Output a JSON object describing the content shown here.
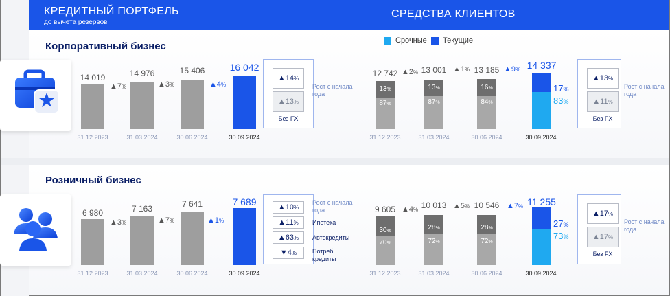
{
  "header": {
    "left_title": "КРЕДИТНЫЙ ПОРТФЕЛЬ",
    "left_subtitle": "до вычета резервов",
    "right_title": "СРЕДСТВА КЛИЕНТОВ"
  },
  "legend": [
    {
      "label": "Срочные",
      "color": "#1fa9f0"
    },
    {
      "label": "Текущие",
      "color": "#1a55e8"
    }
  ],
  "colors": {
    "bar_grey": "#9e9e9e",
    "bar_dark": "#6e6e6e",
    "bar_light": "#a8a8a8",
    "accent": "#1a55e8",
    "term": "#1fa9f0"
  },
  "sections": [
    {
      "title": "Корпоративный бизнес",
      "icon": "briefcase-icon",
      "loans": {
        "categories": [
          "31.12.2023",
          "31.03.2024",
          "30.06.2024",
          "30.09.2024"
        ],
        "values": [
          14019,
          14976,
          15406,
          16042
        ],
        "labels": [
          "14 019",
          "14 976",
          "15 406",
          "16 042"
        ],
        "growth": [
          "▲7",
          "▲3",
          "▲4"
        ],
        "growth_unit": "%",
        "box": {
          "items": [
            {
              "label": "▲14",
              "unit": "%",
              "caption": "Рост с начала года"
            },
            {
              "label": "▲13",
              "unit": "%",
              "caption": "Без FX"
            }
          ]
        }
      },
      "funds": {
        "categories": [
          "31.12.2023",
          "31.03.2024",
          "30.06.2024",
          "30.09.2024"
        ],
        "values": [
          12742,
          13001,
          13185,
          14337
        ],
        "labels": [
          "12 742",
          "13 001",
          "13 185",
          "14 337"
        ],
        "growth": [
          "▲2",
          "▲1",
          "▲9"
        ],
        "growth_unit": "%",
        "current_share": [
          13,
          13,
          16,
          17
        ],
        "term_share": [
          87,
          87,
          84,
          83
        ],
        "box": {
          "items": [
            {
              "label": "▲13",
              "unit": "%",
              "caption": "Рост с начала года"
            },
            {
              "label": "▲11",
              "unit": "%",
              "caption": "Без FX"
            }
          ]
        }
      }
    },
    {
      "title": "Розничный бизнес",
      "icon": "people-icon",
      "loans": {
        "categories": [
          "31.12.2023",
          "31.03.2024",
          "30.06.2024",
          "30.09.2024"
        ],
        "values": [
          6980,
          7163,
          7641,
          7689
        ],
        "labels": [
          "6 980",
          "7 163",
          "7 641",
          "7 689"
        ],
        "growth": [
          "▲3",
          "▲7",
          "▲1"
        ],
        "growth_unit": "%",
        "box": {
          "items": [
            {
              "label": "▲10",
              "unit": "%",
              "caption": "Рост с начала года"
            },
            {
              "label": "▲11",
              "unit": "%",
              "caption": "Ипотека"
            },
            {
              "label": "▲63",
              "unit": "%",
              "caption": "Автокредиты"
            },
            {
              "label": "▼4",
              "unit": "%",
              "caption": "Потреб. кредиты"
            }
          ]
        }
      },
      "funds": {
        "categories": [
          "31.12.2023",
          "31.03.2024",
          "30.06.2024",
          "30.09.2024"
        ],
        "values": [
          9605,
          10013,
          10546,
          11255
        ],
        "labels": [
          "9 605",
          "10 013",
          "10 546",
          "11 255"
        ],
        "growth": [
          "▲4",
          "▲5",
          "▲7"
        ],
        "growth_unit": "%",
        "current_share": [
          30,
          28,
          28,
          27
        ],
        "term_share": [
          70,
          72,
          72,
          73
        ],
        "box": {
          "items": [
            {
              "label": "▲17",
              "unit": "%",
              "caption": "Рост с начала года"
            },
            {
              "label": "▲17",
              "unit": "%",
              "caption": "Без FX"
            }
          ]
        }
      }
    }
  ],
  "chart_data": [
    {
      "type": "bar",
      "title": "Корпоративный бизнес — КРЕДИТНЫЙ ПОРТФЕЛЬ",
      "categories": [
        "31.12.2023",
        "31.03.2024",
        "30.06.2024",
        "30.09.2024"
      ],
      "values": [
        14019,
        14976,
        15406,
        16042
      ]
    },
    {
      "type": "bar",
      "title": "Корпоративный бизнес — СРЕДСТВА КЛИЕНТОВ",
      "categories": [
        "31.12.2023",
        "31.03.2024",
        "30.06.2024",
        "30.09.2024"
      ],
      "values": [
        12742,
        13001,
        13185,
        14337
      ],
      "series": [
        {
          "name": "Текущие",
          "values": [
            13,
            13,
            16,
            17
          ]
        },
        {
          "name": "Срочные",
          "values": [
            87,
            87,
            84,
            83
          ]
        }
      ]
    },
    {
      "type": "bar",
      "title": "Розничный бизнес — КРЕДИТНЫЙ ПОРТФЕЛЬ",
      "categories": [
        "31.12.2023",
        "31.03.2024",
        "30.06.2024",
        "30.09.2024"
      ],
      "values": [
        6980,
        7163,
        7641,
        7689
      ]
    },
    {
      "type": "bar",
      "title": "Розничный бизнес — СРЕДСТВА КЛИЕНТОВ",
      "categories": [
        "31.12.2023",
        "31.03.2024",
        "30.06.2024",
        "30.09.2024"
      ],
      "values": [
        9605,
        10013,
        10546,
        11255
      ],
      "series": [
        {
          "name": "Текущие",
          "values": [
            30,
            28,
            28,
            27
          ]
        },
        {
          "name": "Срочные",
          "values": [
            70,
            72,
            72,
            73
          ]
        }
      ]
    }
  ]
}
